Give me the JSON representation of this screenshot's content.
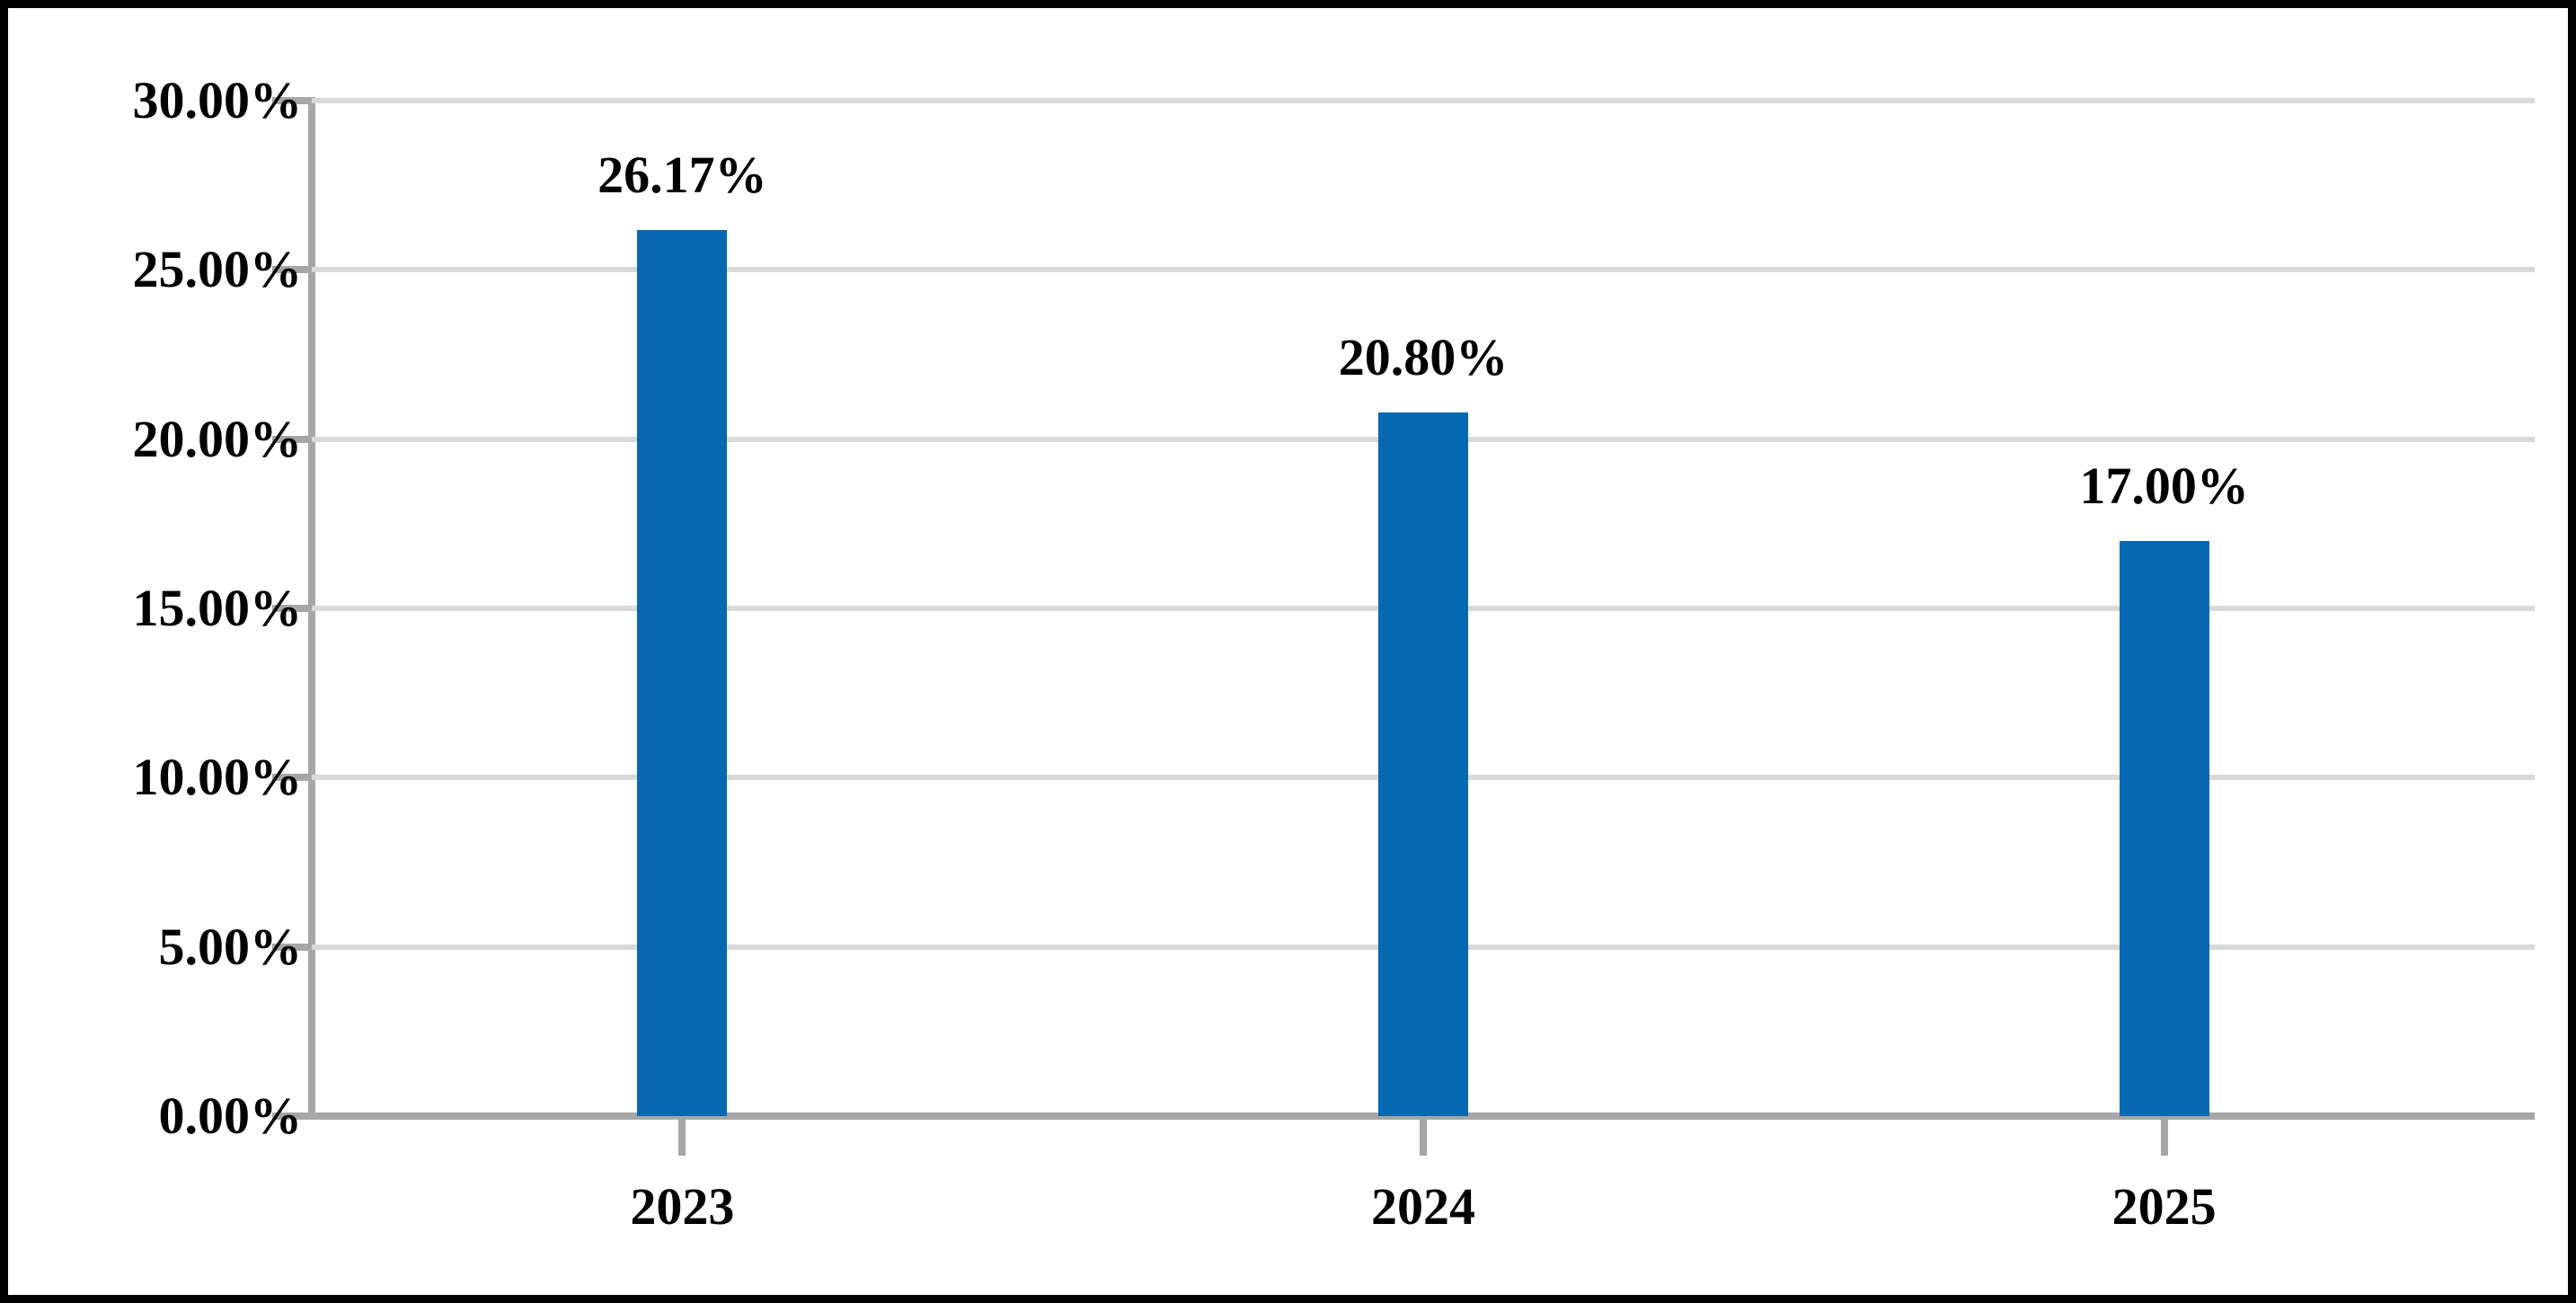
{
  "chart_data": {
    "type": "bar",
    "categories": [
      "2023",
      "2024",
      "2025"
    ],
    "values": [
      26.17,
      20.8,
      17.0
    ],
    "value_labels": [
      "26.17%",
      "20.80%",
      "17.00%"
    ],
    "title": "",
    "xlabel": "",
    "ylabel": "",
    "ylim": [
      0,
      30
    ],
    "y_tick_step": 5,
    "y_tick_labels": [
      "30.00%",
      "25.00%",
      "20.00%",
      "15.00%",
      "10.00%",
      "5.00%",
      "0.00%"
    ],
    "grid": "horizontal",
    "legend": "none",
    "colors": {
      "bar": "#0668B1",
      "axis": "#A6A6A6",
      "gridline": "#D9D9D9",
      "text": "#000000",
      "frame_border": "#000000",
      "background": "#FFFFFF"
    }
  }
}
